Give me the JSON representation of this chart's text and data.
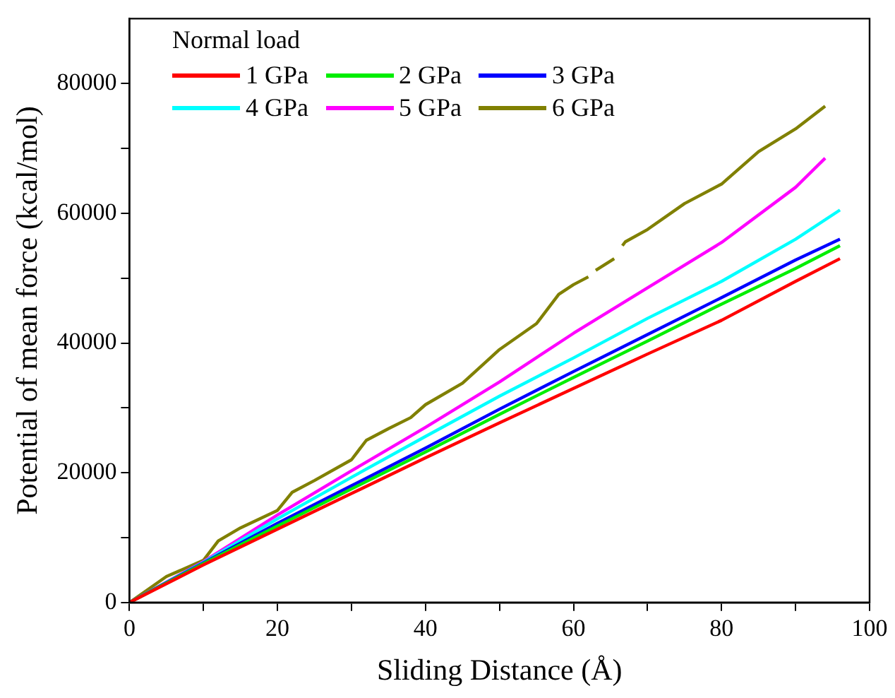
{
  "chart_data": {
    "type": "line",
    "xlabel": "Sliding Distance (Å)",
    "ylabel": "Potential of mean force (kcal/mol)",
    "legend_title": "Normal load",
    "legend": "top left",
    "grid": false,
    "marker": "none",
    "line_style": "solid",
    "xlim": [
      0,
      100
    ],
    "xticks": [
      0,
      {
        "value": 10,
        "label": null
      },
      20,
      {
        "value": 30,
        "label": null
      },
      40,
      {
        "value": 50,
        "label": null
      },
      60,
      {
        "value": 70,
        "label": null
      },
      80,
      {
        "value": 90,
        "label": null
      },
      100
    ],
    "ylim": [
      0,
      90000
    ],
    "yticks": [
      0,
      {
        "value": 10000,
        "label": null
      },
      20000,
      {
        "value": 30000,
        "label": null
      },
      40000,
      {
        "value": 50000,
        "label": null
      },
      60000,
      {
        "value": 70000,
        "label": null
      },
      80000
    ],
    "series": [
      {
        "name": "1 GPa",
        "color": "#ff0000",
        "x": [
          0,
          10,
          20,
          30,
          40,
          50,
          60,
          70,
          80,
          90,
          96
        ],
        "values": [
          0,
          5800,
          11300,
          16800,
          22300,
          27700,
          33000,
          38300,
          43500,
          49500,
          53000
        ]
      },
      {
        "name": "2 GPa",
        "color": "#00ee00",
        "x": [
          0,
          10,
          20,
          30,
          40,
          50,
          60,
          70,
          80,
          90,
          96
        ],
        "values": [
          0,
          6000,
          11800,
          17500,
          23200,
          29000,
          34700,
          40300,
          46000,
          51500,
          55000
        ]
      },
      {
        "name": "3 GPa",
        "color": "#0000ff",
        "x": [
          0,
          10,
          20,
          30,
          40,
          50,
          60,
          70,
          80,
          90,
          96
        ],
        "values": [
          0,
          6100,
          12200,
          18000,
          23800,
          29800,
          35600,
          41300,
          47000,
          52800,
          56000
        ]
      },
      {
        "name": "4 GPa",
        "color": "#00ffff",
        "x": [
          0,
          10,
          20,
          30,
          40,
          50,
          60,
          70,
          80,
          90,
          96
        ],
        "values": [
          0,
          6200,
          12900,
          19300,
          25600,
          31800,
          37700,
          43800,
          49500,
          56000,
          60500
        ]
      },
      {
        "name": "5 GPa",
        "color": "#ff00ff",
        "x": [
          0,
          10,
          20,
          30,
          40,
          50,
          60,
          70,
          80,
          90,
          94
        ],
        "values": [
          0,
          6300,
          13500,
          20300,
          27000,
          34000,
          41500,
          48500,
          55500,
          64000,
          68500
        ]
      },
      {
        "name": "6 GPa",
        "color": "#808000",
        "x": [
          0,
          5,
          10,
          12,
          15,
          20,
          22,
          25,
          30,
          32,
          35,
          38,
          40,
          45,
          50,
          55,
          58,
          60,
          62,
          62.6,
          63,
          65.5,
          66,
          66.6,
          67,
          70,
          75,
          80,
          85,
          90,
          94
        ],
        "values": [
          0,
          4000,
          6500,
          9500,
          11500,
          14200,
          17000,
          18800,
          22000,
          25000,
          26800,
          28500,
          30500,
          33800,
          39000,
          43000,
          47500,
          49000,
          50200,
          null,
          51200,
          53000,
          null,
          55000,
          55600,
          57500,
          61500,
          64500,
          69500,
          73000,
          76500
        ]
      }
    ]
  }
}
